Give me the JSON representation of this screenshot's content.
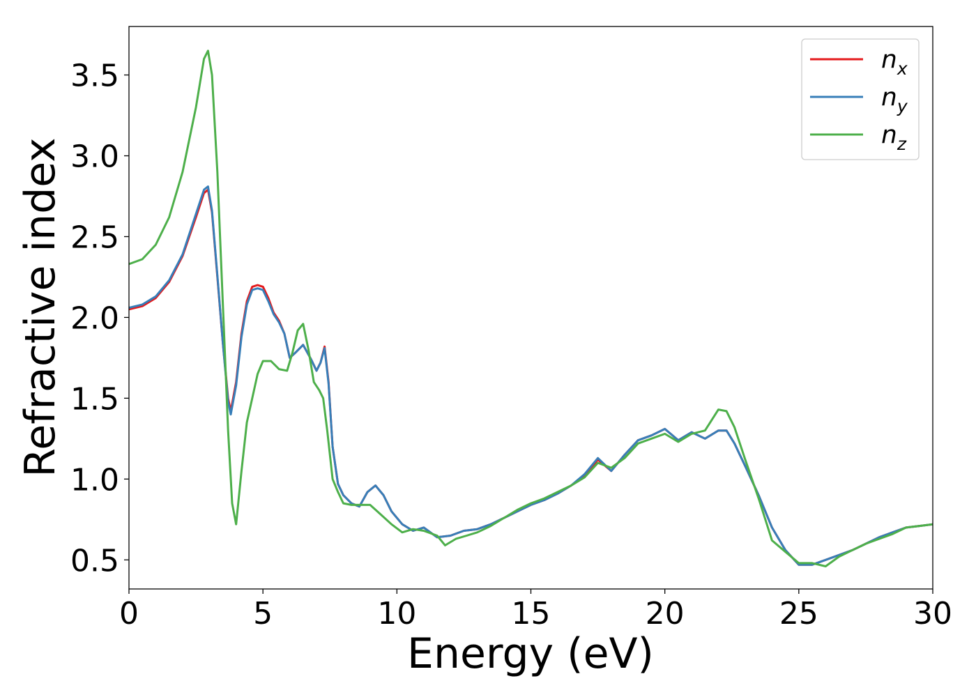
{
  "chart_data": {
    "type": "line",
    "title": "",
    "xlabel": "Energy (eV)",
    "ylabel": "Refractive index",
    "xlim": [
      0,
      30
    ],
    "ylim": [
      0.32,
      3.8
    ],
    "xticks": [
      0,
      5,
      10,
      15,
      20,
      25,
      30
    ],
    "yticks": [
      0.5,
      1.0,
      1.5,
      2.0,
      2.5,
      3.0,
      3.5
    ],
    "xtick_labels": [
      "0",
      "5",
      "10",
      "15",
      "20",
      "25",
      "30"
    ],
    "ytick_labels": [
      "0.5",
      "1.0",
      "1.5",
      "2.0",
      "2.5",
      "3.0",
      "3.5"
    ],
    "grid": false,
    "legend_position": "top-right",
    "series": [
      {
        "name": "n_x",
        "label_base": "n",
        "label_sub": "x",
        "color": "#e41a1c",
        "x": [
          0,
          0.5,
          1,
          1.5,
          2,
          2.5,
          2.8,
          2.95,
          3.1,
          3.3,
          3.5,
          3.7,
          3.8,
          4.0,
          4.2,
          4.4,
          4.6,
          4.8,
          5.0,
          5.2,
          5.4,
          5.6,
          5.8,
          6.0,
          6.2,
          6.5,
          6.8,
          7.0,
          7.15,
          7.3,
          7.45,
          7.6,
          7.8,
          8.0,
          8.3,
          8.6,
          8.9,
          9.2,
          9.5,
          9.8,
          10.2,
          10.6,
          11.0,
          11.5,
          12.0,
          12.5,
          13.0,
          13.5,
          14.0,
          14.5,
          15.0,
          15.5,
          16.0,
          16.5,
          17.0,
          17.5,
          18.0,
          18.5,
          19.0,
          19.5,
          20.0,
          20.5,
          21.0,
          21.5,
          22.0,
          22.3,
          22.6,
          23.0,
          23.5,
          24.0,
          24.5,
          25.0,
          25.5,
          26.0,
          26.5,
          27.0,
          27.5,
          28.0,
          28.5,
          29.0,
          29.5,
          30.0
        ],
        "y": [
          2.05,
          2.07,
          2.12,
          2.22,
          2.38,
          2.62,
          2.77,
          2.79,
          2.65,
          2.25,
          1.85,
          1.5,
          1.42,
          1.6,
          1.9,
          2.1,
          2.19,
          2.2,
          2.19,
          2.12,
          2.03,
          1.98,
          1.9,
          1.75,
          1.78,
          1.83,
          1.74,
          1.67,
          1.72,
          1.82,
          1.6,
          1.2,
          0.97,
          0.9,
          0.85,
          0.83,
          0.92,
          0.96,
          0.9,
          0.8,
          0.72,
          0.68,
          0.7,
          0.64,
          0.65,
          0.68,
          0.69,
          0.72,
          0.76,
          0.8,
          0.84,
          0.87,
          0.91,
          0.96,
          1.02,
          1.12,
          1.05,
          1.15,
          1.24,
          1.27,
          1.31,
          1.24,
          1.29,
          1.25,
          1.3,
          1.3,
          1.22,
          1.08,
          0.9,
          0.7,
          0.56,
          0.47,
          0.47,
          0.5,
          0.53,
          0.56,
          0.6,
          0.64,
          0.67,
          0.7,
          0.71,
          0.72
        ]
      },
      {
        "name": "n_y",
        "label_base": "n",
        "label_sub": "y",
        "color": "#377eb8",
        "x": [
          0,
          0.5,
          1,
          1.5,
          2,
          2.5,
          2.8,
          2.95,
          3.1,
          3.3,
          3.5,
          3.7,
          3.8,
          4.0,
          4.2,
          4.4,
          4.6,
          4.8,
          5.0,
          5.2,
          5.4,
          5.6,
          5.8,
          6.0,
          6.2,
          6.5,
          6.8,
          7.0,
          7.15,
          7.3,
          7.45,
          7.6,
          7.8,
          8.0,
          8.3,
          8.6,
          8.9,
          9.2,
          9.5,
          9.8,
          10.2,
          10.6,
          11.0,
          11.5,
          12.0,
          12.5,
          13.0,
          13.5,
          14.0,
          14.5,
          15.0,
          15.5,
          16.0,
          16.5,
          17.0,
          17.5,
          18.0,
          18.5,
          19.0,
          19.5,
          20.0,
          20.5,
          21.0,
          21.5,
          22.0,
          22.3,
          22.6,
          23.0,
          23.5,
          24.0,
          24.5,
          25.0,
          25.5,
          26.0,
          26.5,
          27.0,
          27.5,
          28.0,
          28.5,
          29.0,
          29.5,
          30.0
        ],
        "y": [
          2.06,
          2.08,
          2.13,
          2.23,
          2.39,
          2.64,
          2.79,
          2.81,
          2.66,
          2.26,
          1.85,
          1.48,
          1.4,
          1.58,
          1.88,
          2.08,
          2.17,
          2.18,
          2.17,
          2.1,
          2.02,
          1.97,
          1.9,
          1.75,
          1.78,
          1.83,
          1.74,
          1.67,
          1.72,
          1.81,
          1.59,
          1.2,
          0.97,
          0.9,
          0.85,
          0.83,
          0.92,
          0.96,
          0.9,
          0.8,
          0.72,
          0.68,
          0.7,
          0.64,
          0.65,
          0.68,
          0.69,
          0.72,
          0.76,
          0.8,
          0.84,
          0.87,
          0.91,
          0.96,
          1.03,
          1.13,
          1.05,
          1.15,
          1.24,
          1.27,
          1.31,
          1.24,
          1.29,
          1.25,
          1.3,
          1.3,
          1.22,
          1.08,
          0.9,
          0.7,
          0.56,
          0.47,
          0.47,
          0.5,
          0.53,
          0.56,
          0.6,
          0.64,
          0.67,
          0.7,
          0.71,
          0.72
        ]
      },
      {
        "name": "n_z",
        "label_base": "n",
        "label_sub": "z",
        "color": "#4daf4a",
        "x": [
          0,
          0.5,
          1,
          1.5,
          2,
          2.5,
          2.8,
          2.95,
          3.1,
          3.3,
          3.5,
          3.7,
          3.85,
          4.0,
          4.2,
          4.4,
          4.6,
          4.8,
          5.0,
          5.3,
          5.6,
          5.9,
          6.1,
          6.3,
          6.5,
          6.7,
          6.9,
          7.1,
          7.25,
          7.4,
          7.6,
          7.8,
          8.0,
          8.3,
          8.6,
          9.0,
          9.4,
          9.8,
          10.2,
          10.6,
          11.0,
          11.5,
          11.8,
          12.2,
          12.6,
          13.0,
          13.5,
          14.0,
          14.5,
          15.0,
          15.5,
          16.0,
          16.5,
          17.0,
          17.5,
          18.0,
          18.5,
          19.0,
          19.5,
          20.0,
          20.5,
          21.0,
          21.5,
          22.0,
          22.3,
          22.6,
          23.0,
          23.5,
          24.0,
          24.5,
          25.0,
          25.5,
          26.0,
          26.5,
          27.0,
          27.5,
          28.0,
          28.5,
          29.0,
          29.5,
          30.0
        ],
        "y": [
          2.33,
          2.36,
          2.45,
          2.62,
          2.9,
          3.3,
          3.6,
          3.65,
          3.5,
          2.9,
          2.1,
          1.3,
          0.85,
          0.72,
          1.05,
          1.35,
          1.5,
          1.65,
          1.73,
          1.73,
          1.68,
          1.67,
          1.78,
          1.92,
          1.96,
          1.8,
          1.6,
          1.55,
          1.5,
          1.3,
          1.0,
          0.92,
          0.85,
          0.84,
          0.84,
          0.84,
          0.78,
          0.72,
          0.67,
          0.69,
          0.68,
          0.65,
          0.59,
          0.63,
          0.65,
          0.67,
          0.71,
          0.76,
          0.81,
          0.85,
          0.88,
          0.92,
          0.96,
          1.01,
          1.1,
          1.07,
          1.13,
          1.22,
          1.25,
          1.28,
          1.23,
          1.28,
          1.3,
          1.43,
          1.42,
          1.32,
          1.12,
          0.88,
          0.62,
          0.55,
          0.48,
          0.48,
          0.46,
          0.52,
          0.56,
          0.6,
          0.63,
          0.66,
          0.7,
          0.71,
          0.72
        ]
      }
    ]
  }
}
